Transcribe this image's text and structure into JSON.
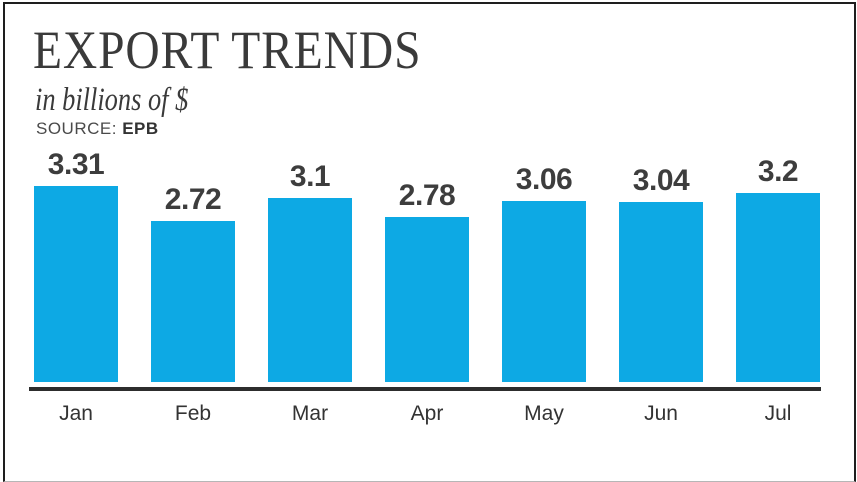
{
  "header": {
    "title": "EXPORT TRENDS",
    "subtitle": "in billions of $",
    "source_label": "SOURCE:",
    "source_value": "EPB"
  },
  "chart_data": {
    "type": "bar",
    "title": "EXPORT TRENDS",
    "subtitle": "in billions of $",
    "source": "EPB",
    "unit": "billions of $",
    "categories": [
      "Jan",
      "Feb",
      "Mar",
      "Apr",
      "May",
      "Jun",
      "Jul"
    ],
    "values": [
      3.31,
      2.72,
      3.1,
      2.78,
      3.06,
      3.04,
      3.2
    ],
    "xlabel": "",
    "ylabel": "in billions of $",
    "ylim": [
      0,
      3.31
    ],
    "grid": false,
    "legend": false,
    "value_labels_shown": true,
    "bar_color": "#0DA9E4"
  },
  "colors": {
    "bar": "#0DA9E4",
    "text": "#3A3A3A",
    "axis_line": "#2D2D2D",
    "frame_border": "#1E1E1E"
  }
}
